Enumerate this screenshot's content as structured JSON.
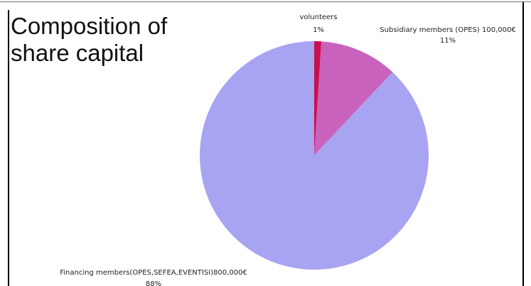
{
  "chart_data": {
    "type": "pie",
    "title": "Composition of share capital",
    "slices": [
      {
        "label": "volunteers",
        "percent_label": "1%",
        "value": 1,
        "color": "#c8104e"
      },
      {
        "label": "Subsidiary members (OPES) 100,000€",
        "percent_label": "11%",
        "value": 11,
        "color": "#c862bc"
      },
      {
        "label": "Financing members(OPES,SEFEA,EVENTISI)800,000€",
        "percent_label": "88%",
        "value": 88,
        "color": "#a8a4f2"
      }
    ],
    "start_angle_deg": 0,
    "direction": "clockwise",
    "legend": "none"
  }
}
